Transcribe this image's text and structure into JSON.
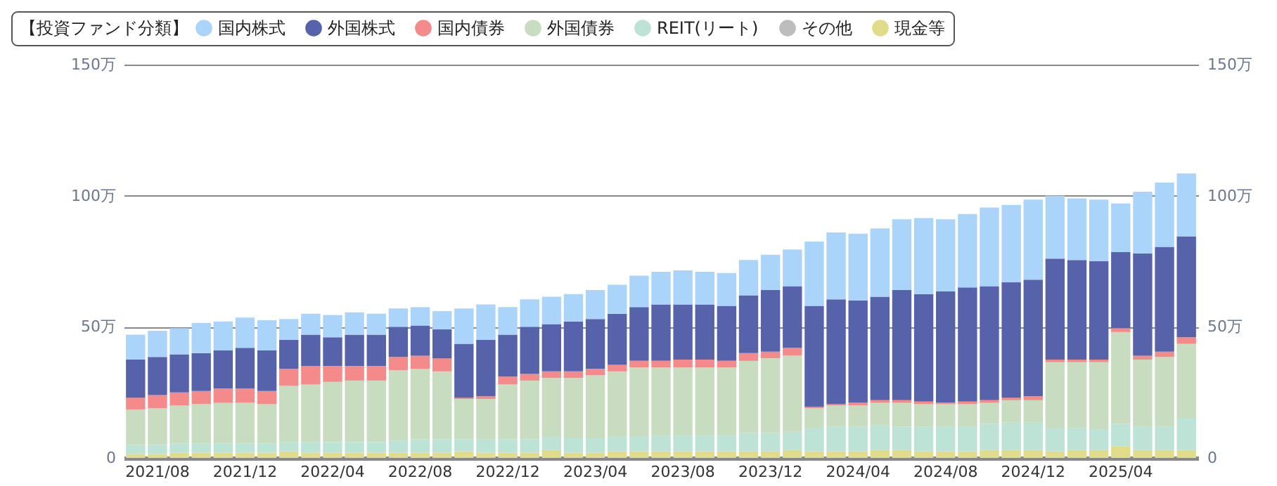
{
  "chart_data": {
    "type": "bar",
    "stacked": true,
    "legend_title": "【投資ファンド分類】",
    "legend": "top left",
    "grid": "y",
    "categories": [
      null,
      "2021/08",
      null,
      null,
      null,
      "2021/12",
      null,
      null,
      null,
      "2022/04",
      null,
      null,
      null,
      "2022/08",
      null,
      null,
      null,
      "2022/12",
      null,
      null,
      null,
      "2023/04",
      null,
      null,
      null,
      "2023/08",
      null,
      null,
      null,
      "2023/12",
      null,
      null,
      null,
      "2024/04",
      null,
      null,
      null,
      "2024/08",
      null,
      null,
      null,
      "2024/12",
      null,
      null,
      null,
      "2025/04",
      null,
      null,
      null
    ],
    "ylim": [
      0,
      150
    ],
    "yticks": [
      0,
      {
        "value": 50,
        "label": "50万"
      },
      {
        "value": 100,
        "label": "100万"
      },
      {
        "value": 150,
        "label": "150万"
      }
    ],
    "y2lim": [
      0,
      150
    ],
    "y2ticks": [
      0,
      {
        "value": 50,
        "label": "50万"
      },
      {
        "value": 100,
        "label": "100万"
      },
      {
        "value": 150,
        "label": "150万"
      }
    ],
    "series": [
      {
        "name": "現金等",
        "color": "#e0dc8a",
        "values": [
          1.5,
          1.5,
          2,
          2,
          2,
          2,
          2,
          2.5,
          2,
          2,
          2,
          2,
          2,
          2,
          2,
          2.5,
          2,
          2,
          2,
          3,
          2,
          2,
          2.5,
          2.5,
          2.5,
          2.5,
          2.5,
          2.5,
          2.5,
          2.5,
          3,
          2.5,
          2.5,
          2.5,
          3,
          3,
          2.5,
          2.5,
          2.5,
          3,
          3,
          3,
          2.5,
          3,
          3,
          4.5,
          3,
          3,
          3
        ]
      },
      {
        "name": "その他",
        "color": "#bdbdbd",
        "values": [
          0,
          0,
          0,
          0,
          0,
          0,
          0,
          0,
          0,
          0,
          0,
          0,
          0,
          0,
          0,
          0,
          0,
          0,
          0,
          0,
          0,
          0,
          0,
          0,
          0,
          0,
          0,
          0,
          0,
          0,
          0,
          0,
          0,
          0,
          0,
          0,
          0,
          0,
          0,
          0,
          0,
          0,
          0,
          0,
          0,
          0,
          0,
          0,
          0
        ]
      },
      {
        "name": "REIT(リート)",
        "color": "#bde3d6",
        "values": [
          3.5,
          3.5,
          3.5,
          3.5,
          3.5,
          3.5,
          3.5,
          3.5,
          4,
          4,
          4,
          4,
          4.5,
          5,
          5,
          4.5,
          5,
          5,
          5,
          5,
          5.5,
          5.5,
          5.5,
          5.5,
          6,
          6,
          6,
          6,
          7,
          7,
          7,
          9,
          9.5,
          9.5,
          9.5,
          9,
          9.5,
          9.5,
          9.5,
          10,
          10.5,
          10.5,
          9,
          8.5,
          8,
          8.5,
          9,
          9,
          12
        ]
      },
      {
        "name": "外国債券",
        "color": "#c8dcbf",
        "values": [
          13.5,
          14,
          14.5,
          15,
          15.5,
          15.5,
          15,
          21.5,
          22,
          23,
          23.5,
          23.5,
          27,
          27,
          26,
          15.5,
          15.5,
          21,
          22.5,
          22.5,
          23,
          24,
          25,
          26.5,
          26,
          26,
          26,
          26,
          27.5,
          28.5,
          29,
          7.5,
          8,
          8,
          8.5,
          9,
          8.5,
          8.5,
          8.5,
          8,
          8.5,
          8.5,
          25,
          25,
          25.5,
          35,
          25.5,
          26.5,
          28.5
        ]
      },
      {
        "name": "国内債券",
        "color": "#f48a8a",
        "values": [
          4.5,
          5,
          5,
          5,
          5.5,
          5.5,
          5,
          6.5,
          7,
          6,
          5.5,
          5.5,
          5,
          5,
          5,
          0.5,
          1,
          3,
          2.5,
          2.5,
          2.5,
          2.5,
          2.5,
          2.5,
          2.5,
          3,
          3,
          2.5,
          3,
          2.5,
          3,
          0.5,
          0.5,
          1,
          1,
          1,
          1,
          0.5,
          1,
          1,
          1,
          1.5,
          1,
          1,
          1,
          1.5,
          1.5,
          2,
          2.5
        ]
      },
      {
        "name": "外国株式",
        "color": "#5663ab",
        "values": [
          14.5,
          14.5,
          14.5,
          14.5,
          14.5,
          15.5,
          15.5,
          11,
          12,
          11,
          12,
          12,
          11.5,
          11.5,
          11,
          20.5,
          21.5,
          16,
          18,
          18,
          19,
          19,
          19.5,
          20.5,
          21.5,
          21,
          21,
          21,
          22,
          23.5,
          23.5,
          38.5,
          40,
          39,
          39.5,
          42,
          41,
          42.5,
          43.5,
          43.5,
          44,
          44.5,
          38.5,
          38,
          37.5,
          29,
          39,
          40,
          38.5
        ]
      },
      {
        "name": "国内株式",
        "color": "#aad4fa",
        "values": [
          9.5,
          10,
          10,
          11.5,
          11,
          11.5,
          11.5,
          8,
          8,
          8.5,
          8.5,
          8,
          7,
          7,
          7,
          13.5,
          13.5,
          10.5,
          10.5,
          10.5,
          10.5,
          11,
          11,
          12,
          12.5,
          13,
          12.5,
          12.5,
          13.5,
          13.5,
          14,
          24.5,
          25.5,
          25.5,
          26,
          27,
          29,
          27.5,
          28,
          30,
          29.5,
          30.5,
          24,
          23.5,
          23.5,
          18.5,
          23.5,
          24.5,
          24
        ]
      }
    ]
  }
}
